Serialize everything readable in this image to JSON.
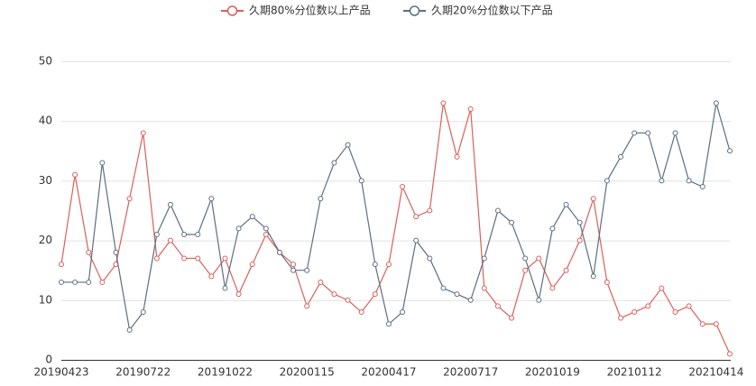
{
  "chart_data": {
    "type": "line",
    "categories": [
      "20190423",
      null,
      null,
      null,
      null,
      null,
      "20190722",
      null,
      null,
      null,
      null,
      null,
      "20191022",
      null,
      null,
      null,
      null,
      null,
      "20200115",
      null,
      null,
      null,
      null,
      null,
      "20200417",
      null,
      null,
      null,
      null,
      null,
      "20200717",
      null,
      null,
      null,
      null,
      null,
      "20201019",
      null,
      null,
      null,
      null,
      null,
      "20210112",
      null,
      null,
      null,
      null,
      null,
      "20210414",
      null
    ],
    "series": [
      {
        "name": "久期80%分位数以上产品",
        "color": "#d9605a",
        "values": [
          16,
          31,
          18,
          13,
          16,
          27,
          38,
          17,
          20,
          17,
          17,
          14,
          17,
          11,
          16,
          21,
          18,
          16,
          9,
          13,
          11,
          10,
          8,
          11,
          16,
          29,
          24,
          25,
          43,
          34,
          42,
          12,
          9,
          7,
          15,
          17,
          12,
          15,
          20,
          27,
          13,
          7,
          8,
          9,
          12,
          8,
          9,
          6,
          6,
          1
        ]
      },
      {
        "name": "久期20%分位数以下产品",
        "color": "#5d6f80",
        "values": [
          13,
          13,
          13,
          33,
          18,
          5,
          8,
          21,
          26,
          21,
          21,
          27,
          12,
          22,
          24,
          22,
          18,
          15,
          15,
          27,
          33,
          36,
          30,
          16,
          6,
          8,
          20,
          17,
          12,
          11,
          10,
          17,
          25,
          23,
          17,
          10,
          22,
          26,
          23,
          14,
          30,
          34,
          38,
          38,
          30,
          38,
          30,
          29,
          43,
          35
        ]
      }
    ],
    "ylim": [
      0,
      50
    ],
    "yticks": [
      0,
      10,
      20,
      30,
      40,
      50
    ],
    "grid": true
  }
}
